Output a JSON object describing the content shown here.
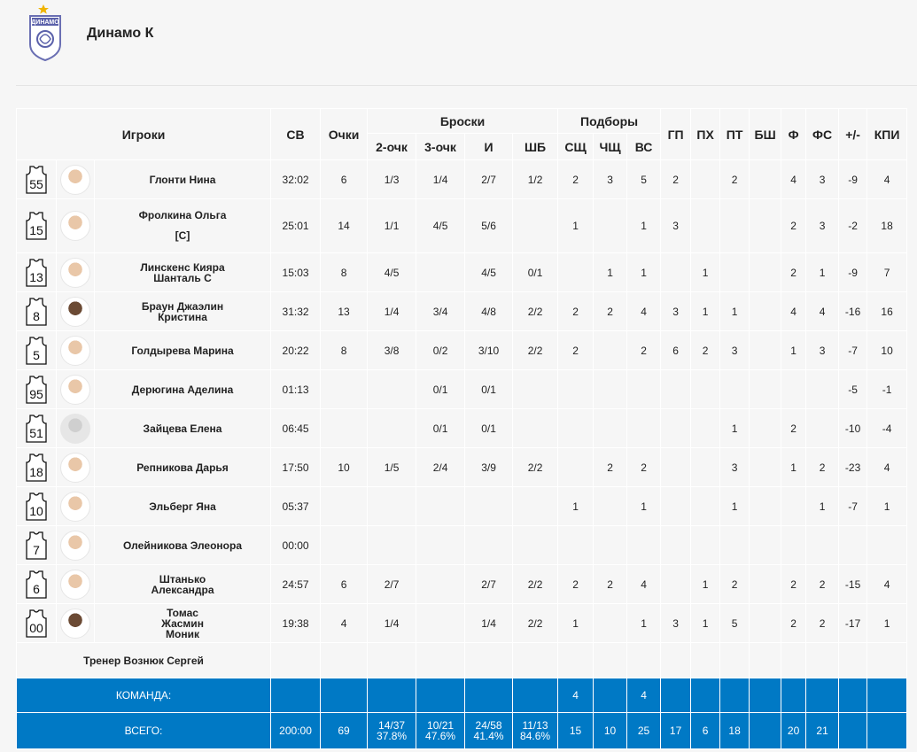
{
  "team": {
    "name": "Динамо К",
    "logo_text": "ДИНАМО"
  },
  "headers": {
    "players": "Игроки",
    "sv": "СВ",
    "points": "Очки",
    "shots": "Броски",
    "rebounds": "Подборы",
    "gp": "ГП",
    "ph": "ПХ",
    "pt": "ПТ",
    "bsh": "БШ",
    "f": "Ф",
    "fs": "ФС",
    "pm": "+/-",
    "kpi": "КПИ",
    "two": "2-очк",
    "three": "3-очк",
    "i": "И",
    "shb": "ШБ",
    "ssh": "СЩ",
    "chsh": "ЧЩ",
    "vs": "ВС"
  },
  "players": [
    {
      "num": "55",
      "name": "Глонти Нина",
      "captain": "",
      "sv": "32:02",
      "pts": "6",
      "two": "1/3",
      "three": "1/4",
      "i": "2/7",
      "ft": "1/2",
      "or": "2",
      "dr": "3",
      "tr": "5",
      "as": "2",
      "st": "",
      "to": "2",
      "bl": "",
      "pf": "4",
      "fd": "3",
      "pm": "-9",
      "kpi": "4",
      "avatar": "light"
    },
    {
      "num": "15",
      "name": "Фролкина Ольга",
      "captain": "[С]",
      "sv": "25:01",
      "pts": "14",
      "two": "1/1",
      "three": "4/5",
      "i": "5/6",
      "ft": "",
      "or": "1",
      "dr": "",
      "tr": "1",
      "as": "3",
      "st": "",
      "to": "",
      "bl": "",
      "pf": "2",
      "fd": "3",
      "pm": "-2",
      "kpi": "18",
      "avatar": "light"
    },
    {
      "num": "13",
      "name": "Линскенс Кияра Шанталь С",
      "captain": "",
      "sv": "15:03",
      "pts": "8",
      "two": "4/5",
      "three": "",
      "i": "4/5",
      "ft": "0/1",
      "or": "",
      "dr": "1",
      "tr": "1",
      "as": "",
      "st": "1",
      "to": "",
      "bl": "",
      "pf": "2",
      "fd": "1",
      "pm": "-9",
      "kpi": "7",
      "avatar": "light"
    },
    {
      "num": "8",
      "name": "Браун Джаэлин Кристина",
      "captain": "",
      "sv": "31:32",
      "pts": "13",
      "two": "1/4",
      "three": "3/4",
      "i": "4/8",
      "ft": "2/2",
      "or": "2",
      "dr": "2",
      "tr": "4",
      "as": "3",
      "st": "1",
      "to": "1",
      "bl": "",
      "pf": "4",
      "fd": "4",
      "pm": "-16",
      "kpi": "16",
      "avatar": "dark"
    },
    {
      "num": "5",
      "name": "Голдырева Марина",
      "captain": "",
      "sv": "20:22",
      "pts": "8",
      "two": "3/8",
      "three": "0/2",
      "i": "3/10",
      "ft": "2/2",
      "or": "2",
      "dr": "",
      "tr": "2",
      "as": "6",
      "st": "2",
      "to": "3",
      "bl": "",
      "pf": "1",
      "fd": "3",
      "pm": "-7",
      "kpi": "10",
      "avatar": "light"
    },
    {
      "num": "95",
      "name": "Дерюгина Аделина",
      "captain": "",
      "sv": "01:13",
      "pts": "",
      "two": "",
      "three": "0/1",
      "i": "0/1",
      "ft": "",
      "or": "",
      "dr": "",
      "tr": "",
      "as": "",
      "st": "",
      "to": "",
      "bl": "",
      "pf": "",
      "fd": "",
      "pm": "-5",
      "kpi": "-1",
      "avatar": "light"
    },
    {
      "num": "51",
      "name": "Зайцева Елена",
      "captain": "",
      "sv": "06:45",
      "pts": "",
      "two": "",
      "three": "0/1",
      "i": "0/1",
      "ft": "",
      "or": "",
      "dr": "",
      "tr": "",
      "as": "",
      "st": "",
      "to": "1",
      "bl": "",
      "pf": "2",
      "fd": "",
      "pm": "-10",
      "kpi": "-4",
      "avatar": "gray"
    },
    {
      "num": "18",
      "name": "Репникова Дарья",
      "captain": "",
      "sv": "17:50",
      "pts": "10",
      "two": "1/5",
      "three": "2/4",
      "i": "3/9",
      "ft": "2/2",
      "or": "",
      "dr": "2",
      "tr": "2",
      "as": "",
      "st": "",
      "to": "3",
      "bl": "",
      "pf": "1",
      "fd": "2",
      "pm": "-23",
      "kpi": "4",
      "avatar": "light"
    },
    {
      "num": "10",
      "name": "Эльберг Яна",
      "captain": "",
      "sv": "05:37",
      "pts": "",
      "two": "",
      "three": "",
      "i": "",
      "ft": "",
      "or": "1",
      "dr": "",
      "tr": "1",
      "as": "",
      "st": "",
      "to": "1",
      "bl": "",
      "pf": "",
      "fd": "1",
      "pm": "-7",
      "kpi": "1",
      "avatar": "light"
    },
    {
      "num": "7",
      "name": "Олейникова Элеонора",
      "captain": "",
      "sv": "00:00",
      "pts": "",
      "two": "",
      "three": "",
      "i": "",
      "ft": "",
      "or": "",
      "dr": "",
      "tr": "",
      "as": "",
      "st": "",
      "to": "",
      "bl": "",
      "pf": "",
      "fd": "",
      "pm": "",
      "kpi": "",
      "avatar": "light"
    },
    {
      "num": "6",
      "name": "Штанько Александра",
      "captain": "",
      "sv": "24:57",
      "pts": "6",
      "two": "2/7",
      "three": "",
      "i": "2/7",
      "ft": "2/2",
      "or": "2",
      "dr": "2",
      "tr": "4",
      "as": "",
      "st": "1",
      "to": "2",
      "bl": "",
      "pf": "2",
      "fd": "2",
      "pm": "-15",
      "kpi": "4",
      "avatar": "light"
    },
    {
      "num": "00",
      "name": "Томас Жасмин Моник",
      "captain": "",
      "sv": "19:38",
      "pts": "4",
      "two": "1/4",
      "three": "",
      "i": "1/4",
      "ft": "2/2",
      "or": "1",
      "dr": "",
      "tr": "1",
      "as": "3",
      "st": "1",
      "to": "5",
      "bl": "",
      "pf": "2",
      "fd": "2",
      "pm": "-17",
      "kpi": "1",
      "avatar": "dark"
    }
  ],
  "coach": "Тренер Вознюк Сергей",
  "team_row": {
    "label": "КОМАНДА:",
    "or": "4",
    "tr": "4"
  },
  "total_row": {
    "label": "ВСЕГО:",
    "sv": "200:00",
    "pts": "69",
    "two": "14/37",
    "two_pct": "37.8%",
    "three": "10/21",
    "three_pct": "47.6%",
    "i": "24/58",
    "i_pct": "41.4%",
    "ft": "11/13",
    "ft_pct": "84.6%",
    "or": "15",
    "dr": "10",
    "tr": "25",
    "as": "17",
    "st": "6",
    "to": "18",
    "bl": "",
    "pf": "20",
    "fd": "21",
    "pm": "",
    "kpi": ""
  }
}
